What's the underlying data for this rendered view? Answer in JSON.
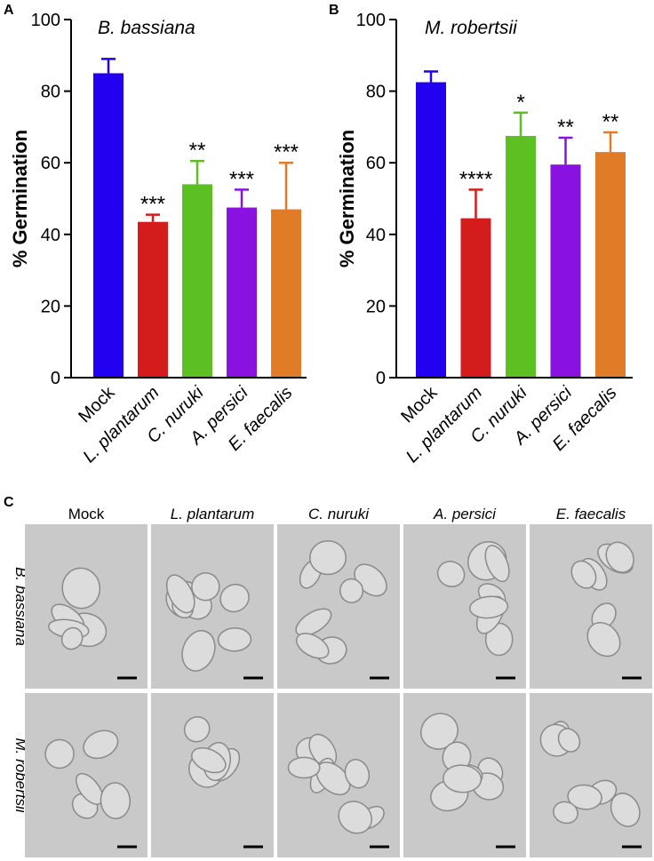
{
  "chart_data": [
    {
      "type": "bar",
      "panel": "A",
      "title": "B. bassiana",
      "ylabel": "% Germination",
      "categories": [
        "Mock",
        "L. plantarum",
        "C. nuruki",
        "A. persici",
        "E. faecalis"
      ],
      "values": [
        85,
        43.5,
        54,
        47.5,
        47
      ],
      "errors": [
        4,
        2,
        6.5,
        5,
        13
      ],
      "value_labels": [
        null,
        "***",
        "**",
        "***",
        "***"
      ],
      "colors": [
        "#2200f0",
        "#d41c1c",
        "#5cbf22",
        "#8a12e0",
        "#e07b27"
      ],
      "ylim": [
        0,
        100
      ],
      "yticks": [
        0,
        20,
        40,
        60,
        80,
        100
      ]
    },
    {
      "type": "bar",
      "panel": "B",
      "title": "M. robertsii",
      "ylabel": "% Germination",
      "categories": [
        "Mock",
        "L. plantarum",
        "C. nuruki",
        "A. persici",
        "E. faecalis"
      ],
      "values": [
        82.5,
        44.5,
        67.5,
        59.5,
        63
      ],
      "errors": [
        3,
        8,
        6.5,
        7.5,
        5.5
      ],
      "value_labels": [
        null,
        "****",
        "*",
        "**",
        "**"
      ],
      "colors": [
        "#2200f0",
        "#d41c1c",
        "#5cbf22",
        "#8a12e0",
        "#e07b27"
      ],
      "ylim": [
        0,
        100
      ],
      "yticks": [
        0,
        20,
        40,
        60,
        80,
        100
      ]
    }
  ],
  "panel_c": {
    "label": "C",
    "columns": [
      "Mock",
      "L. plantarum",
      "C. nuruki",
      "A. persici",
      "E. faecalis"
    ],
    "rows": [
      "B. bassiana",
      "M. robertsii"
    ]
  }
}
